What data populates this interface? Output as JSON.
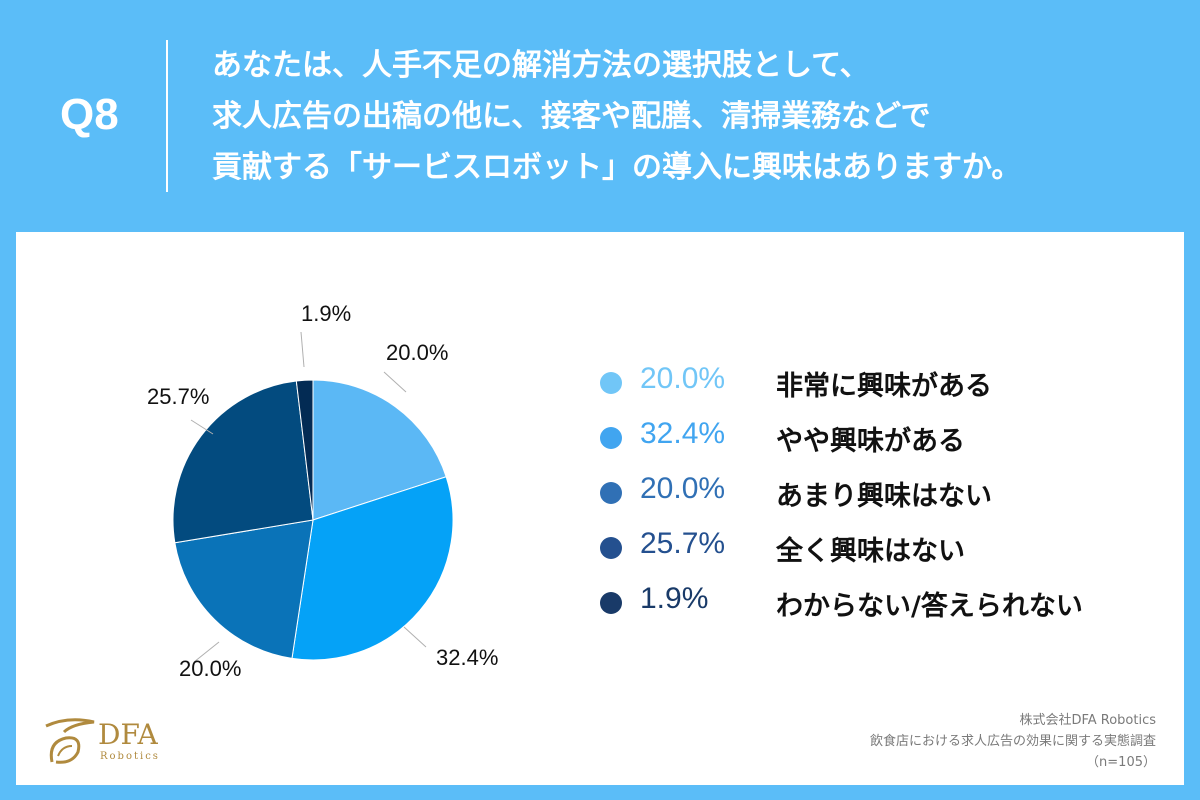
{
  "header": {
    "question_number": "Q8",
    "question_lines": [
      "あなたは、人手不足の解消方法の選択肢として、",
      "求人広告の出稿の他に、接客や配膳、清掃業務などで",
      "貢献する「サービスロボット」の導入に興味はありますか。"
    ]
  },
  "colors": {
    "header_bg": "#5bbdf8",
    "card_bg": "#ffffff"
  },
  "chart_data": {
    "type": "pie",
    "categories": [
      "非常に興味がある",
      "やや興味がある",
      "あまり興味はない",
      "全く興味はない",
      "わからない/答えられない"
    ],
    "values": [
      20.0,
      32.4,
      20.0,
      25.7,
      1.9
    ],
    "labels": [
      "20.0%",
      "32.4%",
      "20.0%",
      "25.7%",
      "1.9%"
    ],
    "colors": [
      "#5bb8f5",
      "#05a2f7",
      "#0a73b8",
      "#034b7f",
      "#032b54"
    ],
    "legend_colors": [
      "#71c6f7",
      "#41a5f0",
      "#3070b5",
      "#24508f",
      "#193a68"
    ],
    "legend_placement": "right",
    "start_angle_deg": 0,
    "direction": "clockwise"
  },
  "logo": {
    "name": "DFA",
    "sub": "Robotics"
  },
  "source": {
    "company": "株式会社DFA Robotics",
    "survey": "飲食店における求人広告の効果に関する実態調査",
    "sample": "（n=105）"
  }
}
